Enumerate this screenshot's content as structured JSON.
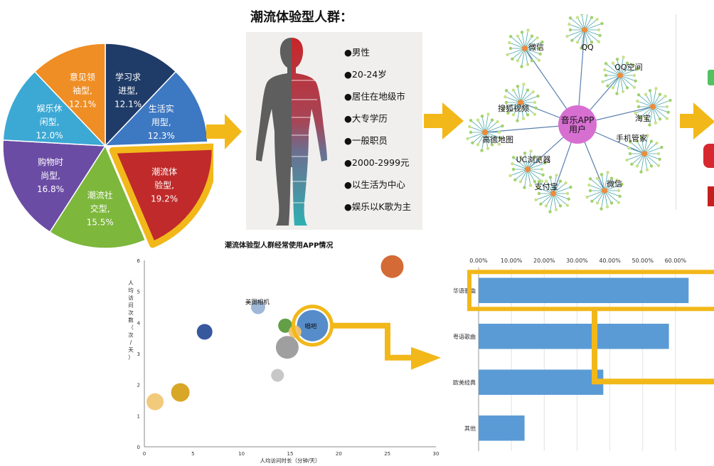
{
  "pie": {
    "slices": [
      {
        "label": "学习求\n进型,\n12.1%",
        "value": 12.1,
        "color": "#1f3b67"
      },
      {
        "label": "生活实\n用型,\n12.3%",
        "value": 12.3,
        "color": "#3d78c2"
      },
      {
        "label": "潮流体\n验型,\n19.2%",
        "value": 19.2,
        "color": "#c02a2a"
      },
      {
        "label": "潮流社\n交型,\n15.5%",
        "value": 15.5,
        "color": "#7db73b"
      },
      {
        "label": "购物时\n尚型,\n16.8%",
        "value": 16.8,
        "color": "#6b4ca4"
      },
      {
        "label": "娱乐休\n闲型,\n12.0%",
        "value": 12.0,
        "color": "#3ca8d4"
      },
      {
        "label": "意见领\n袖型,\n12.1%",
        "value": 12.1,
        "color": "#ef8e24"
      }
    ],
    "highlight_color": "#f2b81a"
  },
  "profile": {
    "title": "潮流体验型人群：",
    "bullets": [
      "●男性",
      "●20-24岁",
      "●居住在地级市",
      "●大专学历",
      "●一般职员",
      "●2000-2999元",
      "●以生活为中心",
      "●娱乐以K歌为主"
    ]
  },
  "network": {
    "center_label": "音乐APP\n用户",
    "nodes": [
      "微信",
      "QQ",
      "QQ空间",
      "搜狐视频",
      "淘宝",
      "高德地图",
      "手机管家",
      "UC浏览器",
      "支付宝",
      "微信"
    ]
  },
  "bubble_chart": {
    "title": "潮流体验型人群经常使用APP情况",
    "ylabel": "人均访问次数（次/天）",
    "xlabel": "人均访问时长（分钟/天）",
    "x_ticks": [
      "0",
      "5",
      "10",
      "15",
      "20",
      "25",
      "30"
    ],
    "y_ticks": [
      "0",
      "1",
      "2",
      "3",
      "4",
      "5",
      "6"
    ],
    "xlim": [
      0,
      30
    ],
    "ylim": [
      0,
      6
    ],
    "labels": {
      "meitu": "美图相机",
      "changba": "唱吧"
    }
  },
  "chart_data": [
    {
      "type": "pie",
      "categories": [
        "学习求进型",
        "生活实用型",
        "潮流体验型",
        "潮流社交型",
        "购物时尚型",
        "娱乐休闲型",
        "意见领袖型"
      ],
      "values": [
        12.1,
        12.3,
        19.2,
        15.5,
        16.8,
        12.0,
        12.1
      ]
    },
    {
      "type": "scatter",
      "title": "潮流体验型人群经常使用APP情况",
      "xlabel": "人均访问时长（分钟/天）",
      "ylabel": "人均访问次数（次/天）",
      "xlim": [
        0,
        30
      ],
      "ylim": [
        0,
        6
      ],
      "points": [
        {
          "x": 25.5,
          "y": 5.8,
          "size": 16,
          "color": "#d2622a"
        },
        {
          "x": 11.7,
          "y": 4.5,
          "size": 10,
          "color": "#9ab4d6",
          "label": "美图相机"
        },
        {
          "x": 17.3,
          "y": 3.9,
          "size": 22,
          "color": "#4d86c6",
          "label": "唱吧"
        },
        {
          "x": 14.5,
          "y": 3.9,
          "size": 10,
          "color": "#5a9a3c"
        },
        {
          "x": 6.2,
          "y": 3.7,
          "size": 11,
          "color": "#2d4f99"
        },
        {
          "x": 15.5,
          "y": 3.7,
          "size": 9,
          "color": "#f0c36b"
        },
        {
          "x": 14.7,
          "y": 3.2,
          "size": 16,
          "color": "#9a9a9a"
        },
        {
          "x": 13.7,
          "y": 2.3,
          "size": 9,
          "color": "#c4c4c4"
        },
        {
          "x": 3.7,
          "y": 1.75,
          "size": 13,
          "color": "#d7a21b"
        },
        {
          "x": 1.1,
          "y": 1.45,
          "size": 12,
          "color": "#f1c774"
        }
      ]
    },
    {
      "type": "bar",
      "orientation": "horizontal",
      "categories": [
        "华语歌曲",
        "粤语歌曲",
        "欧美经典",
        "其他"
      ],
      "values": [
        0.64,
        0.58,
        0.38,
        0.14
      ],
      "x_ticks": [
        "0.00%",
        "10.00%",
        "20.00%",
        "30.00%",
        "40.00%",
        "50.00%",
        "60.00%"
      ],
      "xlim": [
        0,
        0.7
      ]
    }
  ]
}
